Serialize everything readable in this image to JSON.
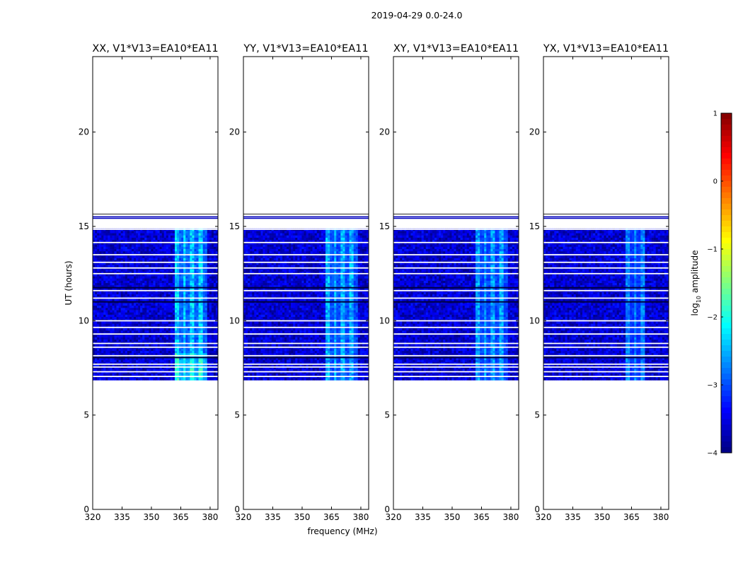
{
  "figure": {
    "suptitle": "2019-04-29 0.0-24.0",
    "xlabel": "frequency (MHz)",
    "ylabel": "UT (hours)"
  },
  "chart_data": [
    {
      "type": "heatmap",
      "title": "XX, V1*V13=EA10*EA11",
      "xlabel": "",
      "ylabel": "UT (hours)",
      "xlim": [
        320,
        384
      ],
      "ylim": [
        0,
        24
      ],
      "xticks": [
        320,
        335,
        350,
        365,
        380
      ],
      "yticks": [
        0,
        5,
        10,
        15,
        20
      ],
      "data_extent_ut": [
        6.85,
        15.55
      ],
      "background_log10_amplitude": -3.6,
      "rfi_band_mhz": [
        362,
        378
      ],
      "rfi_peak_log10_amplitude": -2.0
    },
    {
      "type": "heatmap",
      "title": "YY, V1*V13=EA10*EA11",
      "xlabel": "frequency (MHz)",
      "ylabel": "",
      "xlim": [
        320,
        384
      ],
      "ylim": [
        0,
        24
      ],
      "xticks": [
        320,
        335,
        350,
        365,
        380
      ],
      "yticks": [
        0,
        5,
        10,
        15,
        20
      ],
      "data_extent_ut": [
        6.85,
        15.55
      ],
      "background_log10_amplitude": -3.6,
      "rfi_band_mhz": [
        362,
        378
      ],
      "rfi_peak_log10_amplitude": -2.2
    },
    {
      "type": "heatmap",
      "title": "XY, V1*V13=EA10*EA11",
      "xlabel": "",
      "ylabel": "",
      "xlim": [
        320,
        384
      ],
      "ylim": [
        0,
        24
      ],
      "xticks": [
        320,
        335,
        350,
        365,
        380
      ],
      "yticks": [
        0,
        5,
        10,
        15,
        20
      ],
      "data_extent_ut": [
        6.85,
        15.55
      ],
      "background_log10_amplitude": -3.6,
      "rfi_band_mhz": [
        362,
        378
      ],
      "rfi_peak_log10_amplitude": -2.3
    },
    {
      "type": "heatmap",
      "title": "YX, V1*V13=EA10*EA11",
      "xlabel": "",
      "ylabel": "",
      "xlim": [
        320,
        384
      ],
      "ylim": [
        0,
        24
      ],
      "xticks": [
        320,
        335,
        350,
        365,
        380
      ],
      "yticks": [
        0,
        5,
        10,
        15,
        20
      ],
      "data_extent_ut": [
        6.85,
        15.55
      ],
      "background_log10_amplitude": -3.6,
      "rfi_band_mhz": [
        362,
        372
      ],
      "rfi_peak_log10_amplitude": -2.5
    }
  ],
  "colorbar": {
    "label_main": "log",
    "label_sub": "10",
    "label_rest": " amplitude",
    "min": -4,
    "max": 1,
    "ticks": [
      1,
      0,
      -1,
      -2,
      -3,
      -4
    ],
    "colormap": "jet"
  },
  "flagged_gaps_ut": [
    7.05,
    7.3,
    7.55,
    7.7,
    8.15,
    8.6,
    8.8,
    9.3,
    9.65,
    10.0,
    11.2,
    11.6,
    12.5,
    12.8,
    13.1,
    13.5,
    14.15,
    14.85,
    15.2
  ],
  "dark_rows_ut": [
    8.05,
    11.0,
    11.75
  ]
}
